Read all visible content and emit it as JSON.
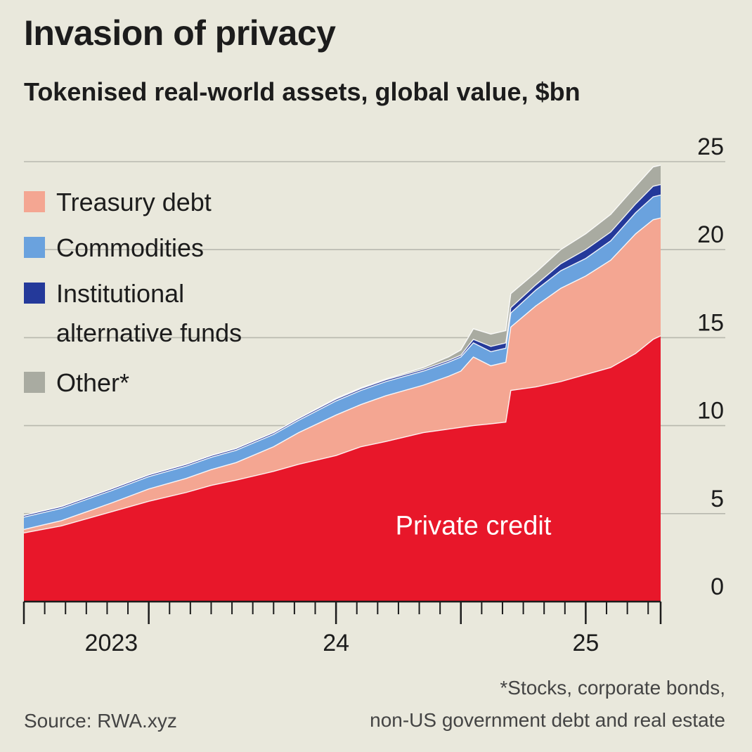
{
  "header": {
    "title": "Invasion of privacy",
    "subtitle": "Tokenised real-world assets, global value, $bn"
  },
  "footer": {
    "source": "Source: RWA.xyz",
    "footnote_line1": "*Stocks, corporate bonds,",
    "footnote_line2": "non-US government debt and real estate"
  },
  "chart_data": {
    "type": "area",
    "stacked": true,
    "title": "Invasion of privacy",
    "subtitle": "Tokenised real-world assets, global value, $bn",
    "x_unit": "years",
    "xlim": [
      2022.75,
      2025.3
    ],
    "ylim": [
      0,
      25
    ],
    "yticks": [
      0,
      5,
      10,
      15,
      20,
      25
    ],
    "y_axis_side": "right",
    "grid": true,
    "legend_position": "top-left",
    "x_labels": [
      {
        "x": 2023.0,
        "label": "2023"
      },
      {
        "x": 2024.0,
        "label": "24"
      },
      {
        "x": 2025.0,
        "label": "25"
      }
    ],
    "x_major_ticks": [
      2022.75,
      2023.25,
      2024.0,
      2024.5,
      2025.0,
      2025.3
    ],
    "x": [
      2022.75,
      2022.9,
      2023.0,
      2023.1,
      2023.25,
      2023.4,
      2023.5,
      2023.6,
      2023.75,
      2023.85,
      2024.0,
      2024.1,
      2024.2,
      2024.35,
      2024.45,
      2024.5,
      2024.55,
      2024.62,
      2024.68,
      2024.7,
      2024.8,
      2024.9,
      2025.0,
      2025.1,
      2025.2,
      2025.27,
      2025.3
    ],
    "series": [
      {
        "name": "Private credit",
        "color": "#e8172a",
        "values": [
          3.9,
          4.3,
          4.7,
          5.1,
          5.7,
          6.2,
          6.6,
          6.9,
          7.4,
          7.8,
          8.3,
          8.8,
          9.1,
          9.6,
          9.8,
          9.9,
          10.0,
          10.1,
          10.2,
          12.0,
          12.2,
          12.5,
          12.9,
          13.3,
          14.1,
          14.9,
          15.1
        ]
      },
      {
        "name": "Treasury debt",
        "color": "#f4a692",
        "values": [
          0.2,
          0.3,
          0.4,
          0.5,
          0.7,
          0.8,
          0.9,
          1.0,
          1.4,
          1.8,
          2.3,
          2.4,
          2.6,
          2.7,
          3.0,
          3.2,
          3.9,
          3.3,
          3.4,
          3.6,
          4.6,
          5.3,
          5.6,
          6.1,
          6.8,
          6.8,
          6.7
        ]
      },
      {
        "name": "Commodities",
        "color": "#6aa2de",
        "values": [
          0.7,
          0.7,
          0.7,
          0.7,
          0.7,
          0.7,
          0.7,
          0.7,
          0.7,
          0.7,
          0.8,
          0.8,
          0.8,
          0.8,
          0.8,
          0.8,
          0.8,
          0.8,
          0.8,
          0.8,
          0.9,
          1.0,
          1.0,
          1.1,
          1.2,
          1.3,
          1.3
        ]
      },
      {
        "name": "Institutional alternative funds",
        "color": "#24399a",
        "values": [
          0.1,
          0.1,
          0.1,
          0.1,
          0.1,
          0.1,
          0.1,
          0.1,
          0.1,
          0.1,
          0.1,
          0.1,
          0.1,
          0.1,
          0.1,
          0.1,
          0.2,
          0.3,
          0.3,
          0.3,
          0.3,
          0.4,
          0.5,
          0.5,
          0.5,
          0.6,
          0.6
        ]
      },
      {
        "name": "Other*",
        "color": "#a9aba1",
        "values": [
          0.0,
          0.0,
          0.0,
          0.0,
          0.0,
          0.0,
          0.0,
          0.0,
          0.0,
          0.0,
          0.05,
          0.05,
          0.05,
          0.1,
          0.2,
          0.3,
          0.6,
          0.7,
          0.7,
          0.8,
          0.7,
          0.8,
          0.9,
          1.0,
          1.0,
          1.1,
          1.1
        ]
      }
    ],
    "legend": [
      {
        "label": "Treasury debt",
        "color": "#f4a692"
      },
      {
        "label": "Commodities",
        "color": "#6aa2de"
      },
      {
        "label_lines": [
          "Institutional",
          "alternative funds"
        ],
        "color": "#24399a"
      },
      {
        "label": "Other*",
        "color": "#a9aba1"
      }
    ],
    "annotations": [
      {
        "text": "Private credit",
        "x": 2024.55,
        "y": 4.3,
        "color": "#ffffff"
      }
    ]
  }
}
